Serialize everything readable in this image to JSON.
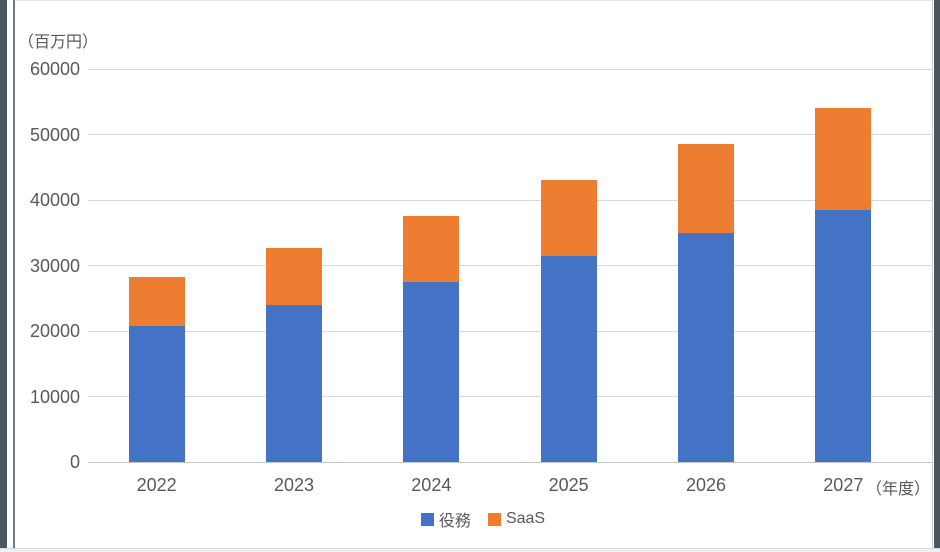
{
  "window": {
    "unit_label": "（百万円）",
    "year_axis_label": "（年度）"
  },
  "colors": {
    "series_blue": "#4472C4",
    "series_orange": "#ED7D31",
    "gridline": "#D9D9D9",
    "axis_line": "#C6C6C6",
    "text": "#595959",
    "window_edge": "#4A5760"
  },
  "chart_data": {
    "type": "bar",
    "stacked": true,
    "title": "",
    "categories": [
      "2022",
      "2023",
      "2024",
      "2025",
      "2026",
      "2027"
    ],
    "series": [
      {
        "name": "役務",
        "color": "#4472C4",
        "values": [
          20800,
          23900,
          27500,
          31400,
          34900,
          38400
        ]
      },
      {
        "name": "SaaS",
        "color": "#ED7D31",
        "values": [
          7500,
          8700,
          10000,
          11700,
          13700,
          15600
        ]
      }
    ],
    "totals": [
      28300,
      32600,
      37500,
      43100,
      48600,
      54000
    ],
    "ylabel": "（百万円）",
    "xlabel": "（年度）",
    "ylim": [
      0,
      60000
    ],
    "yticks": [
      0,
      10000,
      20000,
      30000,
      40000,
      50000,
      60000
    ],
    "grid": true,
    "legend_position": "bottom",
    "legend_entries": [
      "役務",
      "SaaS"
    ]
  }
}
